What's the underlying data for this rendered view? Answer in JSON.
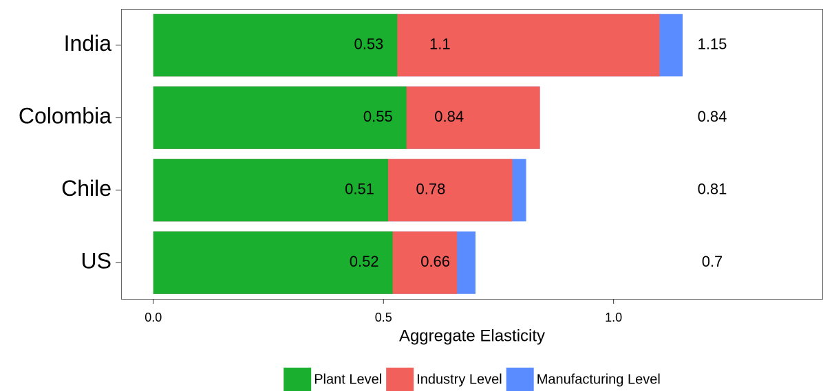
{
  "chart_data": {
    "type": "bar",
    "orientation": "horizontal",
    "x_label": "Aggregate Elasticity",
    "categories": [
      "India",
      "Colombia",
      "Chile",
      "US"
    ],
    "series": [
      {
        "name": "Manufacturing Level",
        "color": "#5a8cff",
        "values": [
          1.15,
          0.84,
          0.81,
          0.7
        ]
      },
      {
        "name": "Industry Level",
        "color": "#f2605c",
        "values": [
          1.1,
          0.84,
          0.78,
          0.66
        ]
      },
      {
        "name": "Plant Level",
        "color": "#1aaf2e",
        "values": [
          0.53,
          0.55,
          0.51,
          0.52
        ]
      }
    ],
    "xlim": [
      -0.07,
      1.455
    ],
    "xticks": [
      {
        "value": 0,
        "label": "0.0"
      },
      0.5,
      {
        "value": 1,
        "label": "1.0"
      }
    ],
    "legend": "bottom"
  }
}
